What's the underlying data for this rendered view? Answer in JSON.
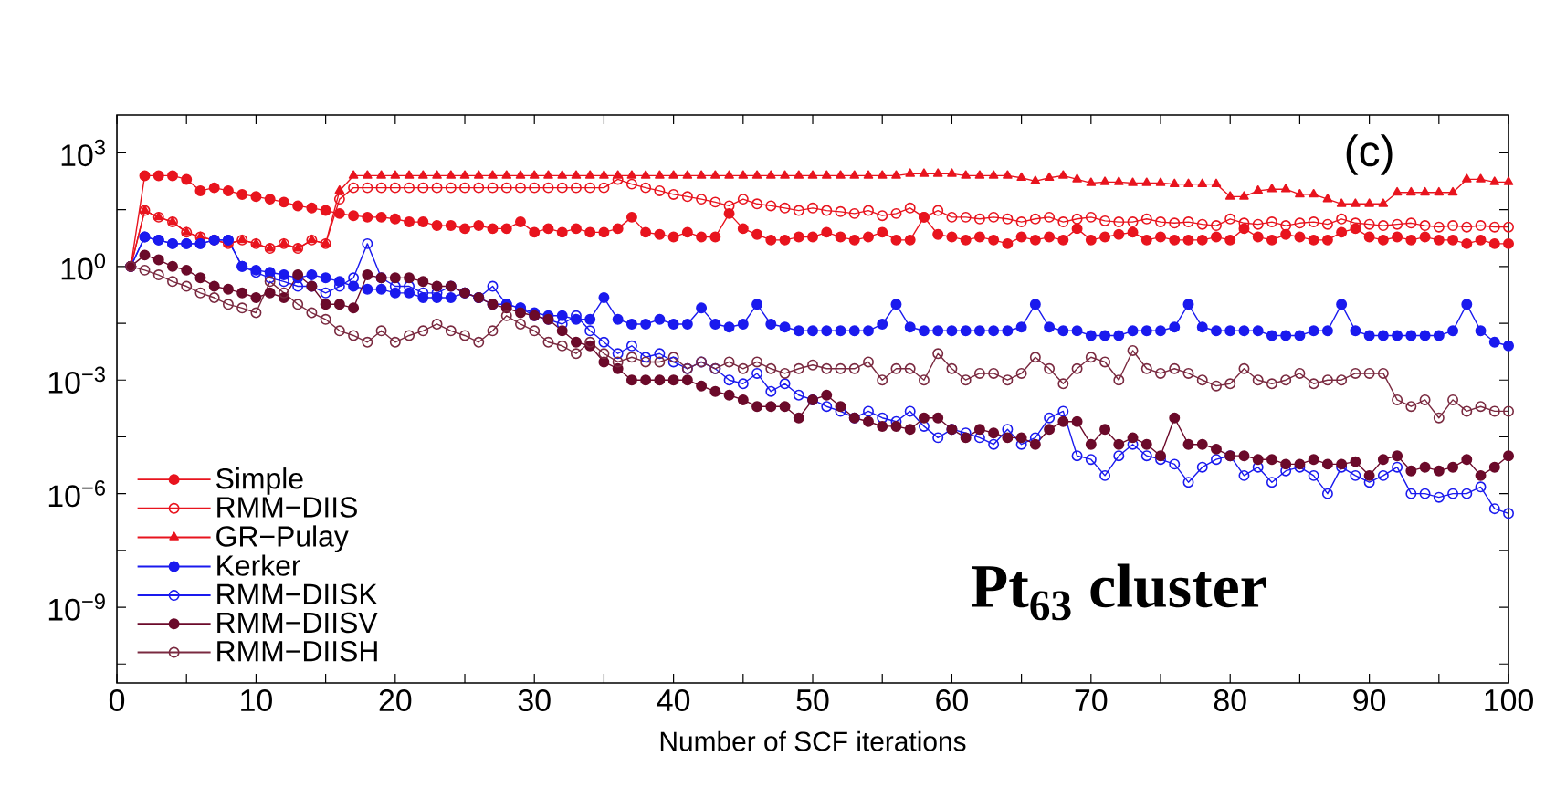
{
  "chart_data": {
    "type": "line",
    "xlabel": "Number of SCF iterations",
    "log": "y",
    "legend": "bottom left",
    "xlim": [
      0,
      100
    ],
    "ylim": [
      1e-11,
      10000.0
    ],
    "xticks": [
      0,
      {
        "value": 5,
        "label": null
      },
      10,
      {
        "value": 15,
        "label": null
      },
      20,
      {
        "value": 25,
        "label": null
      },
      30,
      {
        "value": 35,
        "label": null
      },
      40,
      {
        "value": 45,
        "label": null
      },
      50,
      {
        "value": 55,
        "label": null
      },
      60,
      {
        "value": 65,
        "label": null
      },
      70,
      {
        "value": 75,
        "label": null
      },
      80,
      {
        "value": 85,
        "label": null
      },
      90,
      {
        "value": 95,
        "label": null
      },
      100
    ],
    "yticks": [
      {
        "value": 1000.0,
        "label": "10$^{3}$"
      },
      {
        "value": 31.6,
        "label": null
      },
      {
        "value": 1,
        "label": "10$^{0}$"
      },
      {
        "value": 0.0316,
        "label": null
      },
      {
        "value": 0.001,
        "label": "10$^{−3}$"
      },
      {
        "value": 3.16e-05,
        "label": null
      },
      {
        "value": 1e-06,
        "label": "10$^{−6}$"
      },
      {
        "value": 3.16e-08,
        "label": null
      },
      {
        "value": 1e-09,
        "label": "10$^{−9}$"
      },
      {
        "value": 3.16e-11,
        "label": null
      }
    ],
    "annotations": [
      "(c)",
      "Pt$_{63}$ cluster"
    ],
    "x": [
      1,
      2,
      3,
      4,
      5,
      6,
      7,
      8,
      9,
      10,
      11,
      12,
      13,
      14,
      15,
      16,
      17,
      18,
      19,
      20,
      21,
      22,
      23,
      24,
      25,
      26,
      27,
      28,
      29,
      30,
      31,
      32,
      33,
      34,
      35,
      36,
      37,
      38,
      39,
      40,
      41,
      42,
      43,
      44,
      45,
      46,
      47,
      48,
      49,
      50,
      51,
      52,
      53,
      54,
      55,
      56,
      57,
      58,
      59,
      60,
      61,
      62,
      63,
      64,
      65,
      66,
      67,
      68,
      69,
      70,
      71,
      72,
      73,
      74,
      75,
      76,
      77,
      78,
      79,
      80,
      81,
      82,
      83,
      84,
      85,
      86,
      87,
      88,
      89,
      90,
      91,
      92,
      93,
      94,
      95,
      96,
      97,
      98,
      99,
      100
    ],
    "series": [
      {
        "name": "Simple",
        "color": "#e8141e",
        "marker": "circle",
        "values": [
          1,
          250,
          250,
          250,
          200,
          100,
          120,
          100,
          80,
          70,
          60,
          50,
          40,
          35,
          30,
          25,
          22,
          20,
          20,
          18,
          15,
          15,
          12,
          12,
          10,
          12,
          10,
          10,
          15,
          8,
          10,
          8,
          10,
          8,
          8,
          10,
          20,
          8,
          7,
          6,
          8,
          6,
          6,
          25,
          10,
          7,
          5,
          5,
          6,
          6,
          8,
          6,
          5,
          6,
          8,
          5,
          5,
          20,
          7,
          6,
          5,
          6,
          5,
          4,
          6,
          5,
          6,
          5,
          10,
          5,
          6,
          7,
          8,
          5,
          6,
          5,
          5,
          5,
          6,
          5,
          10,
          6,
          5,
          7,
          6,
          5,
          5,
          8,
          10,
          6,
          5,
          6,
          5,
          6,
          5,
          5,
          4,
          5,
          4,
          4
        ]
      },
      {
        "name": "RMM−DIIS",
        "color": "#e8141e",
        "marker": "open circle",
        "values": [
          1,
          30,
          20,
          15,
          8,
          6,
          5,
          4,
          5,
          4,
          3,
          4,
          3,
          5,
          4,
          60,
          120,
          120,
          120,
          120,
          120,
          120,
          120,
          120,
          120,
          120,
          120,
          120,
          120,
          120,
          120,
          120,
          120,
          120,
          120,
          200,
          150,
          120,
          100,
          80,
          70,
          60,
          50,
          40,
          60,
          45,
          40,
          35,
          30,
          35,
          30,
          28,
          25,
          30,
          22,
          25,
          35,
          20,
          30,
          20,
          20,
          18,
          20,
          18,
          15,
          18,
          20,
          15,
          18,
          20,
          16,
          15,
          15,
          18,
          15,
          14,
          15,
          13,
          12,
          18,
          14,
          13,
          15,
          12,
          14,
          15,
          13,
          18,
          14,
          13,
          12,
          13,
          14,
          12,
          11,
          12,
          11,
          12,
          11,
          11
        ]
      },
      {
        "name": "GR−Pulay",
        "color": "#e8141e",
        "marker": "triangle",
        "values": [
          1,
          30,
          20,
          15,
          8,
          6,
          5,
          4,
          5,
          4,
          3,
          4,
          3,
          5,
          4,
          100,
          250,
          250,
          250,
          250,
          250,
          250,
          250,
          250,
          250,
          250,
          250,
          250,
          250,
          250,
          250,
          250,
          250,
          250,
          250,
          250,
          250,
          250,
          250,
          250,
          250,
          250,
          250,
          250,
          250,
          250,
          250,
          250,
          250,
          250,
          250,
          250,
          250,
          250,
          250,
          250,
          280,
          280,
          280,
          280,
          250,
          250,
          250,
          250,
          220,
          180,
          220,
          250,
          200,
          160,
          170,
          170,
          160,
          160,
          160,
          150,
          150,
          150,
          150,
          70,
          70,
          100,
          110,
          110,
          80,
          80,
          60,
          45,
          45,
          45,
          45,
          90,
          90,
          90,
          90,
          90,
          200,
          200,
          170,
          170
        ]
      },
      {
        "name": "Kerker",
        "color": "#1a1aee",
        "marker": "circle",
        "values": [
          1,
          6,
          5,
          4,
          4,
          4,
          5,
          5,
          1,
          0.8,
          0.7,
          0.6,
          0.5,
          0.6,
          0.5,
          0.4,
          0.3,
          0.25,
          0.25,
          0.2,
          0.2,
          0.15,
          0.15,
          0.15,
          0.2,
          0.15,
          0.1,
          0.1,
          0.08,
          0.06,
          0.05,
          0.05,
          0.04,
          0.04,
          0.15,
          0.04,
          0.03,
          0.03,
          0.04,
          0.03,
          0.03,
          0.08,
          0.03,
          0.025,
          0.03,
          0.1,
          0.03,
          0.025,
          0.02,
          0.02,
          0.02,
          0.02,
          0.02,
          0.02,
          0.03,
          0.1,
          0.025,
          0.02,
          0.02,
          0.02,
          0.02,
          0.02,
          0.02,
          0.02,
          0.025,
          0.1,
          0.025,
          0.02,
          0.02,
          0.015,
          0.015,
          0.015,
          0.02,
          0.02,
          0.02,
          0.025,
          0.1,
          0.025,
          0.02,
          0.02,
          0.02,
          0.02,
          0.015,
          0.015,
          0.015,
          0.02,
          0.02,
          0.1,
          0.02,
          0.015,
          0.015,
          0.015,
          0.015,
          0.015,
          0.015,
          0.02,
          0.1,
          0.02,
          0.01,
          0.008
        ]
      },
      {
        "name": "RMM−DIISK",
        "color": "#1a1aee",
        "marker": "open circle",
        "values": [
          1,
          6,
          5,
          4,
          4,
          4,
          5,
          5,
          1,
          0.7,
          0.5,
          0.4,
          0.3,
          0.3,
          0.2,
          0.3,
          0.5,
          4,
          0.5,
          0.3,
          0.3,
          0.2,
          0.2,
          0.3,
          0.2,
          0.15,
          0.3,
          0.1,
          0.08,
          0.05,
          0.04,
          0.03,
          0.05,
          0.02,
          0.01,
          0.005,
          0.008,
          0.004,
          0.005,
          0.003,
          0.002,
          0.003,
          0.002,
          0.001,
          0.0008,
          0.0015,
          0.0005,
          0.0008,
          0.0004,
          0.0003,
          0.0002,
          0.00015,
          0.0001,
          0.00015,
          0.0001,
          8e-05,
          0.00015,
          6e-05,
          3e-05,
          5e-05,
          4e-05,
          3e-05,
          2e-05,
          5e-05,
          2e-05,
          3e-05,
          0.0001,
          0.00015,
          1e-05,
          8e-06,
          3e-06,
          1e-05,
          2e-05,
          1e-05,
          8e-06,
          6e-06,
          2e-06,
          5e-06,
          8e-06,
          1e-05,
          3e-06,
          5e-06,
          2e-06,
          4e-06,
          5e-06,
          3e-06,
          1e-06,
          5e-06,
          3e-06,
          2e-06,
          3e-06,
          5e-06,
          1e-06,
          1e-06,
          8e-07,
          1e-06,
          1e-06,
          1.5e-06,
          4e-07,
          3e-07
        ]
      },
      {
        "name": "RMM−DIISV",
        "color": "#6b0a2a",
        "marker": "circle",
        "values": [
          1,
          2,
          1.5,
          1,
          0.8,
          0.5,
          0.3,
          0.25,
          0.2,
          0.15,
          0.2,
          0.15,
          0.6,
          0.3,
          0.1,
          0.1,
          0.08,
          0.6,
          0.5,
          0.5,
          0.5,
          0.4,
          0.3,
          0.3,
          0.2,
          0.15,
          0.1,
          0.08,
          0.06,
          0.05,
          0.04,
          0.02,
          0.01,
          0.008,
          0.003,
          0.002,
          0.001,
          0.001,
          0.001,
          0.001,
          0.001,
          0.0007,
          0.0005,
          0.0004,
          0.0003,
          0.0002,
          0.0002,
          0.0002,
          0.0001,
          0.0003,
          0.0004,
          0.0002,
          0.0001,
          8e-05,
          6e-05,
          6e-05,
          5e-05,
          0.0001,
          0.0001,
          5e-05,
          3e-05,
          5e-05,
          4e-05,
          3e-05,
          3e-05,
          2e-05,
          5e-05,
          8e-05,
          8e-05,
          2e-05,
          5e-05,
          2e-05,
          3e-05,
          2e-05,
          1e-05,
          0.0001,
          2e-05,
          2e-05,
          1.5e-05,
          1e-05,
          1e-05,
          8e-06,
          8e-06,
          6e-06,
          6e-06,
          8e-06,
          6e-06,
          6e-06,
          7e-06,
          3e-06,
          8e-06,
          1e-05,
          4e-06,
          5e-06,
          4e-06,
          5e-06,
          8e-06,
          3e-06,
          5e-06,
          1e-05
        ]
      },
      {
        "name": "RMM−DIISH",
        "color": "#7a2a40",
        "marker": "open circle",
        "values": [
          1,
          0.8,
          0.6,
          0.4,
          0.3,
          0.2,
          0.15,
          0.1,
          0.08,
          0.06,
          0.4,
          0.2,
          0.1,
          0.06,
          0.04,
          0.02,
          0.015,
          0.01,
          0.02,
          0.01,
          0.015,
          0.02,
          0.03,
          0.02,
          0.015,
          0.01,
          0.02,
          0.05,
          0.03,
          0.02,
          0.01,
          0.008,
          0.005,
          0.01,
          0.005,
          0.003,
          0.004,
          0.003,
          0.003,
          0.004,
          0.002,
          0.003,
          0.002,
          0.003,
          0.002,
          0.003,
          0.002,
          0.0015,
          0.002,
          0.0025,
          0.002,
          0.002,
          0.002,
          0.003,
          0.001,
          0.002,
          0.002,
          0.001,
          0.005,
          0.002,
          0.001,
          0.0015,
          0.0015,
          0.001,
          0.0015,
          0.004,
          0.002,
          0.0008,
          0.002,
          0.004,
          0.003,
          0.001,
          0.006,
          0.002,
          0.0015,
          0.002,
          0.0015,
          0.001,
          0.0007,
          0.0008,
          0.002,
          0.001,
          0.0008,
          0.001,
          0.0015,
          0.0008,
          0.001,
          0.001,
          0.0015,
          0.0015,
          0.0015,
          0.0003,
          0.0002,
          0.0003,
          0.0001,
          0.0003,
          0.00015,
          0.0002,
          0.00015,
          0.00015
        ]
      }
    ]
  }
}
